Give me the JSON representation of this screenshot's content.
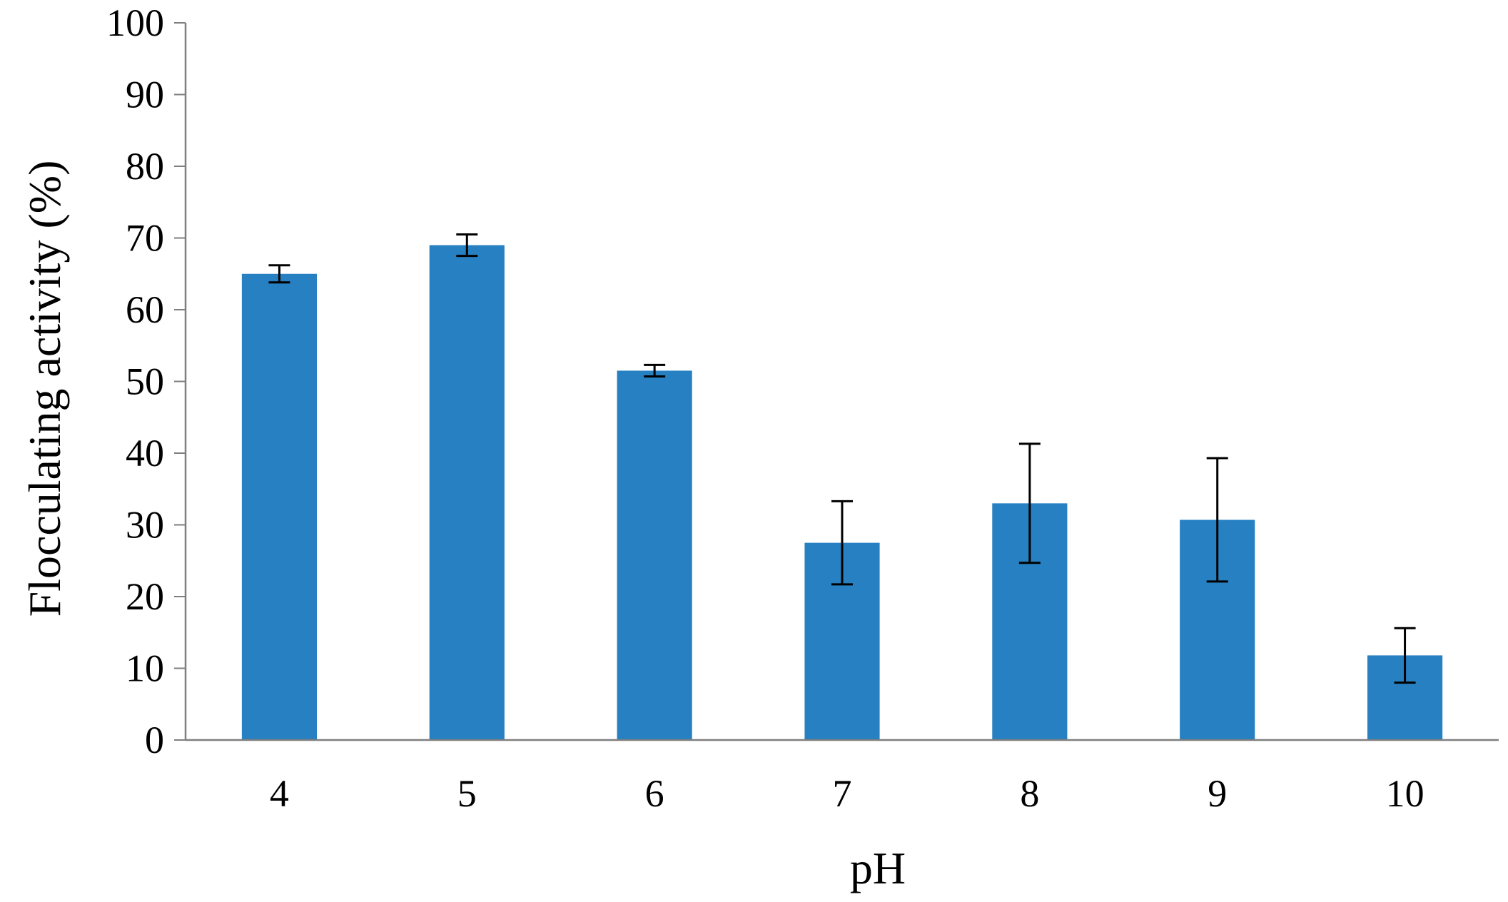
{
  "colors": {
    "bar": "#2680c2",
    "axis": "#7f7f7f",
    "error_bar": "#000000",
    "text": "#000000"
  },
  "chart_data": {
    "type": "bar",
    "title": "",
    "xlabel": "pH",
    "ylabel": "Flocculating activity (%)",
    "categories": [
      "4",
      "5",
      "6",
      "7",
      "8",
      "9",
      "10"
    ],
    "values": [
      65,
      69,
      51.5,
      27.5,
      33,
      30.7,
      11.8
    ],
    "error_bars": [
      1.2,
      1.5,
      0.8,
      5.8,
      8.3,
      8.6,
      3.8
    ],
    "ylim": [
      0,
      100
    ],
    "yticks": [
      0,
      10,
      20,
      30,
      40,
      50,
      60,
      70,
      80,
      90,
      100
    ],
    "grid": false,
    "legend": "none"
  }
}
